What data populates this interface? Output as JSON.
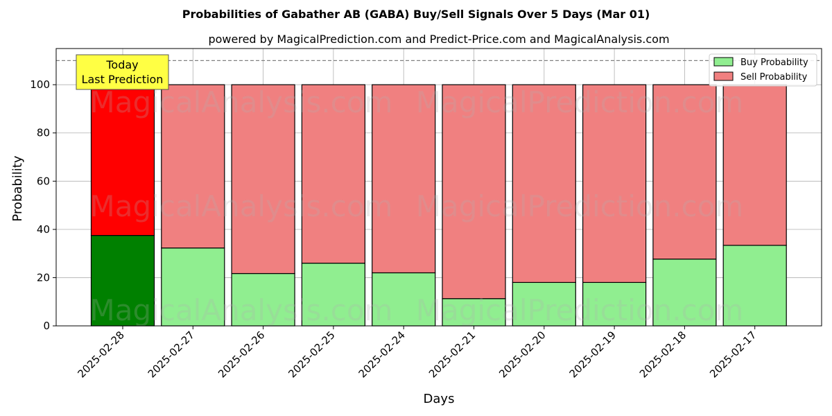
{
  "chart_data": {
    "type": "bar",
    "stacked": true,
    "title": "Probabilities of Gabather AB (GABA) Buy/Sell Signals Over 5 Days (Mar 01)",
    "subtitle": "powered by MagicalPrediction.com and Predict-Price.com and MagicalAnalysis.com",
    "xlabel": "Days",
    "ylabel": "Probability",
    "ylim": [
      0,
      115
    ],
    "yticks": [
      0,
      20,
      40,
      60,
      80,
      100
    ],
    "grid": true,
    "legend_position": "top-right",
    "reference_line": 110,
    "categories": [
      "2025-02-28",
      "2025-02-27",
      "2025-02-26",
      "2025-02-25",
      "2025-02-24",
      "2025-02-21",
      "2025-02-20",
      "2025-02-19",
      "2025-02-18",
      "2025-02-17"
    ],
    "series": [
      {
        "name": "Buy Probability",
        "values": [
          37.5,
          32.3,
          21.7,
          26.0,
          22.0,
          11.3,
          18.0,
          18.0,
          27.7,
          33.4
        ],
        "color": "#90ee90",
        "highlight_color": "#008000"
      },
      {
        "name": "Sell Probability",
        "values": [
          62.5,
          67.7,
          78.3,
          74.0,
          78.0,
          88.7,
          82.0,
          82.0,
          72.3,
          66.6
        ],
        "color": "#f08080",
        "highlight_color": "#ff0000"
      }
    ],
    "annotation": {
      "lines": [
        "Today",
        "Last Prediction"
      ],
      "color": "#ffff44"
    },
    "watermarks": [
      "MagicalAnalysis.com",
      "MagicalPrediction.com"
    ]
  }
}
